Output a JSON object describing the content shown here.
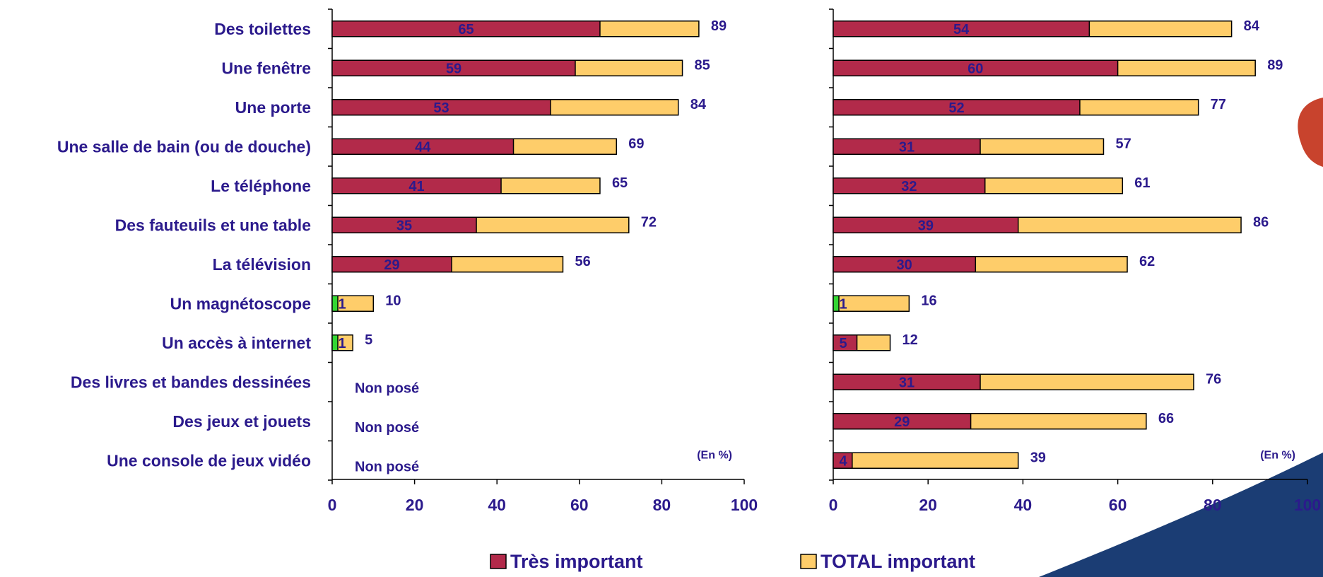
{
  "chart_data": {
    "type": "bar",
    "orientation": "horizontal",
    "categories": [
      "Des toilettes",
      "Une fenêtre",
      "Une porte",
      "Une salle de bain (ou de douche)",
      "Le téléphone",
      "Des fauteuils et une table",
      "La télévision",
      "Un magnétoscope",
      "Un accès à internet",
      "Des livres et bandes dessinées",
      "Des jeux et jouets",
      "Une console de jeux vidéo"
    ],
    "legend": [
      "Très important",
      "TOTAL important"
    ],
    "legend_position": "bottom",
    "colors": {
      "tres_important": "#b22a4a",
      "total_important": "#fecd6a",
      "highlight": "#33d633",
      "text": "#2b1a8c",
      "decor_dark": "#1b3d74",
      "decor_red": "#c8432d"
    },
    "xlim": [
      0,
      100
    ],
    "xticks": [
      "0",
      "20",
      "40",
      "60",
      "80",
      "100"
    ],
    "panels": [
      {
        "unit_note": "(En %)",
        "tres_important": [
          65,
          59,
          53,
          44,
          41,
          35,
          29,
          1,
          1,
          null,
          null,
          null
        ],
        "total_important": [
          89,
          85,
          84,
          69,
          65,
          72,
          56,
          10,
          5,
          null,
          null,
          null
        ],
        "not_asked_label": "Non posé"
      },
      {
        "unit_note": "(En %)",
        "tres_important": [
          54,
          60,
          52,
          31,
          32,
          39,
          30,
          1,
          5,
          31,
          29,
          4
        ],
        "total_important": [
          84,
          89,
          77,
          57,
          61,
          86,
          62,
          16,
          12,
          76,
          66,
          39
        ]
      }
    ]
  }
}
